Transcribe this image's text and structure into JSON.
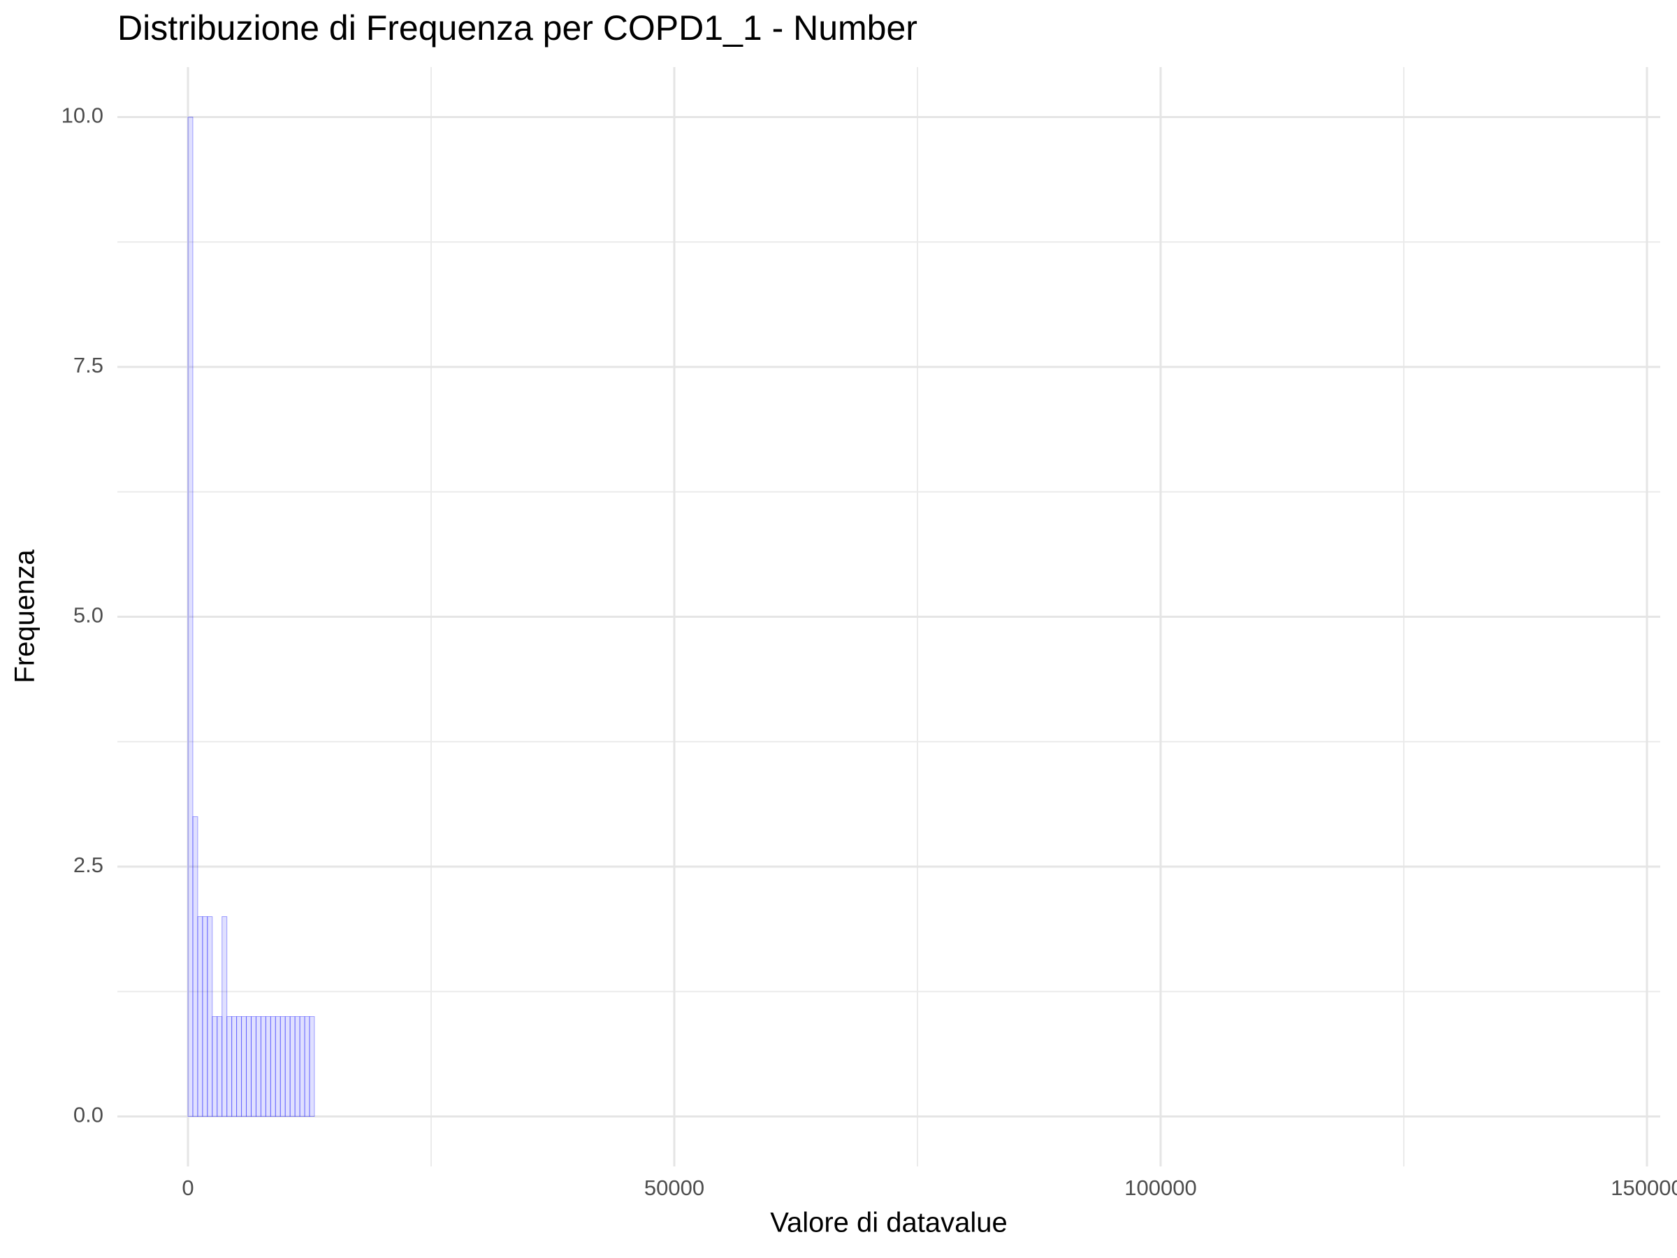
{
  "chart_data": {
    "type": "histogram",
    "title": "Distribuzione di Frequenza per COPD1_1 - Number",
    "x_label": "Valore di datavalue",
    "y_label": "Frequenza",
    "bins": [
      0,
      500,
      1000,
      1500,
      2000,
      2500,
      3000,
      3500,
      4000,
      4500,
      5000,
      5500,
      6000,
      6500,
      7000,
      7500,
      8000,
      8500,
      9000,
      9500,
      10000,
      10500,
      11000,
      11500,
      12000,
      12500,
      13000
    ],
    "counts": [
      10,
      3,
      2,
      2,
      2,
      1,
      1,
      2,
      1,
      1,
      1,
      1,
      1,
      1,
      1,
      1,
      1,
      1,
      1,
      1,
      1,
      1,
      1,
      1,
      1,
      1
    ],
    "color": "#0000ff",
    "xlim": [
      -7256,
      151365
    ],
    "ylim": [
      -0.5,
      10.5
    ],
    "xticks": [
      0,
      50000,
      100000,
      150000
    ],
    "xminor": [
      25000,
      75000,
      125000
    ],
    "yticks": [
      {
        "value": 0,
        "label": "0.0"
      },
      {
        "value": 2.5,
        "label": "2.5"
      },
      {
        "value": 5,
        "label": "5.0"
      },
      {
        "value": 7.5,
        "label": "7.5"
      },
      {
        "value": 10,
        "label": "10.0"
      }
    ],
    "yminor": [
      1.25,
      3.75,
      6.25,
      8.75
    ],
    "grid": true
  }
}
